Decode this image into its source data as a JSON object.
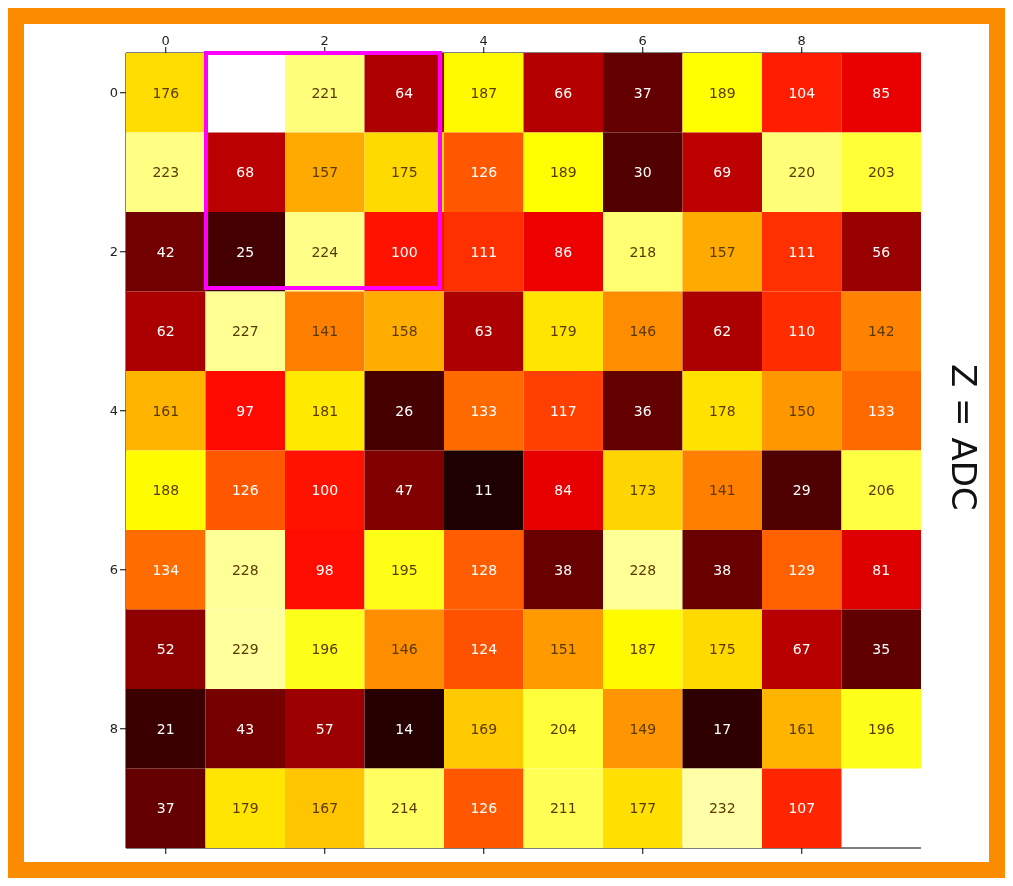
{
  "chart_data": {
    "type": "heatmap",
    "categories": [
      "0",
      null,
      "2",
      null,
      "4",
      null,
      "6",
      null,
      "8",
      null
    ],
    "y_categories": [
      "0",
      null,
      "2",
      null,
      "4",
      null,
      "6",
      null,
      "8",
      null
    ],
    "cells": [
      [
        176,
        null,
        221,
        64,
        187,
        66,
        37,
        189,
        104,
        85
      ],
      [
        223,
        68,
        157,
        175,
        126,
        189,
        30,
        69,
        220,
        203
      ],
      [
        42,
        25,
        224,
        100,
        111,
        86,
        218,
        157,
        111,
        56
      ],
      [
        62,
        227,
        141,
        158,
        63,
        179,
        146,
        62,
        110,
        142
      ],
      [
        161,
        97,
        181,
        26,
        133,
        117,
        36,
        178,
        150,
        133
      ],
      [
        188,
        126,
        100,
        47,
        11,
        84,
        173,
        141,
        29,
        206
      ],
      [
        134,
        228,
        98,
        195,
        128,
        38,
        228,
        38,
        129,
        81
      ],
      [
        52,
        229,
        196,
        146,
        124,
        151,
        187,
        175,
        67,
        35
      ],
      [
        21,
        43,
        57,
        14,
        169,
        204,
        149,
        17,
        161,
        196
      ],
      [
        37,
        179,
        167,
        214,
        126,
        211,
        177,
        232,
        107,
        null
      ]
    ],
    "data_labels": true,
    "annotations": [
      "Z = ADC"
    ]
  }
}
